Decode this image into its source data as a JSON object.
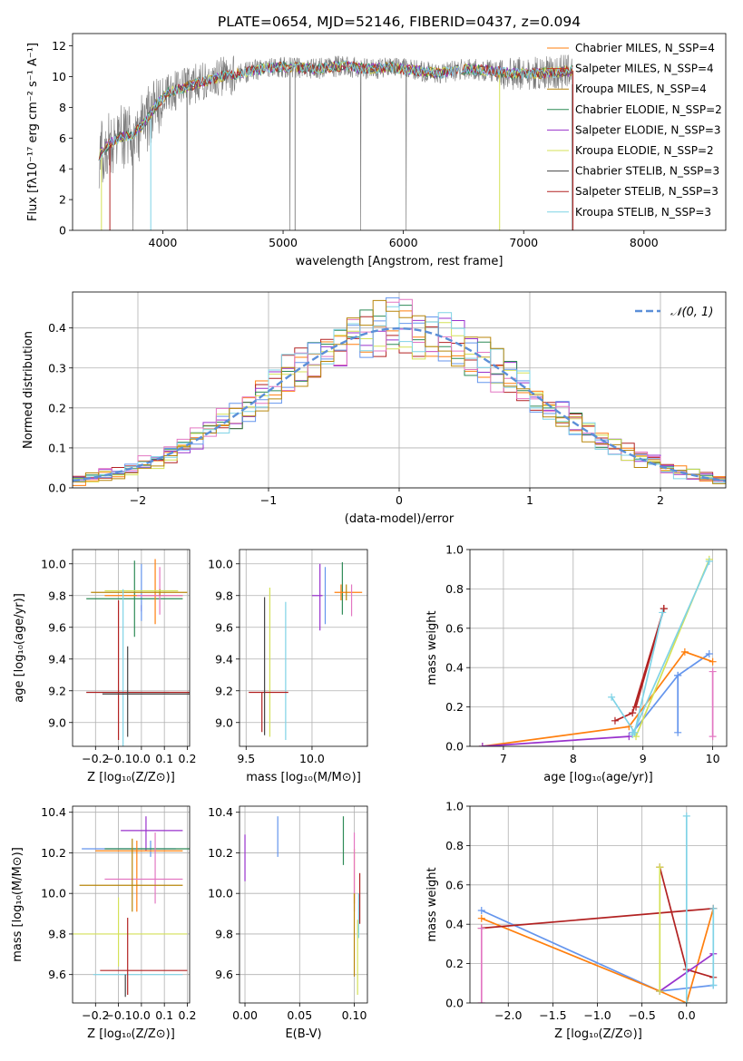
{
  "figure": {
    "title": "PLATE=0654, MJD=52146, FIBERID=0437, z=0.094"
  },
  "model_colors": [
    "#b8860b",
    "#2e8b57",
    "#9932cc",
    "#d4e157",
    "#555555",
    "#b22222",
    "#7fd3e6"
  ],
  "chart_data": [
    {
      "id": "spectrum",
      "type": "line",
      "xlabel": "wavelength [Angstrom, rest frame]",
      "ylabel": "Flux [fλ10⁻¹⁷ erg cm⁻² s⁻¹ A⁻¹]",
      "xlim": [
        3250,
        8680
      ],
      "ylim": [
        0,
        12.8
      ],
      "xticks": [
        4000,
        5000,
        6000,
        7000,
        8000
      ],
      "yticks": [
        0,
        2,
        4,
        6,
        8,
        10,
        12
      ],
      "grid": false,
      "legend_position": "right",
      "data_wavelength_range": [
        3470,
        7410
      ],
      "continuum": {
        "x": [
          3470,
          3550,
          3650,
          3750,
          3850,
          3950,
          4050,
          4150,
          4300,
          4500,
          4700,
          4900,
          5100,
          5300,
          5500,
          5700,
          5900,
          6100,
          6300,
          6500,
          6700,
          6900,
          7100,
          7300,
          7410
        ],
        "y": [
          4.9,
          5.6,
          6.1,
          6.2,
          7.0,
          8.2,
          9.0,
          9.2,
          9.6,
          10.0,
          10.3,
          10.6,
          10.6,
          10.5,
          10.7,
          10.5,
          10.6,
          10.4,
          10.2,
          10.5,
          10.4,
          10.2,
          10.2,
          10.3,
          10.4
        ]
      },
      "series": [
        {
          "name": "Chabrier MILES, N_SSP=4"
        },
        {
          "name": "Salpeter MILES, N_SSP=4"
        },
        {
          "name": "Kroupa MILES, N_SSP=4"
        },
        {
          "name": "Chabrier ELODIE, N_SSP=2"
        },
        {
          "name": "Salpeter ELODIE, N_SSP=3"
        },
        {
          "name": "Kroupa ELODIE, N_SSP=2"
        },
        {
          "name": "Chabrier STELIB, N_SSP=3"
        },
        {
          "name": "Salpeter STELIB, N_SSP=3"
        },
        {
          "name": "Kroupa STELIB, N_SSP=3"
        }
      ]
    },
    {
      "id": "residuals",
      "type": "area",
      "xlabel": "(data-model)/error",
      "ylabel": "Normed distribution",
      "xlim": [
        -2.5,
        2.5
      ],
      "ylim": [
        0,
        0.49
      ],
      "xticks": [
        -2,
        -1,
        0,
        1,
        2
      ],
      "yticks": [
        0.0,
        0.1,
        0.2,
        0.3,
        0.4
      ],
      "grid": true,
      "legend": "𝒩(0, 1)",
      "legend_position": "top-right",
      "bin_width": 0.1,
      "gaussian": {
        "mean": 0,
        "sigma": 1
      }
    },
    {
      "id": "age-vs-Z",
      "type": "scatter",
      "xlabel": "Z [log₁₀(Z/Z⊙)]",
      "ylabel": "age  [log₁₀(age/yr)]",
      "xlim": [
        -0.3,
        0.21
      ],
      "ylim": [
        8.85,
        10.09
      ],
      "xticks": [
        -0.2,
        -0.1,
        0.0,
        0.1,
        0.2
      ],
      "yticks": [
        9.0,
        9.2,
        9.4,
        9.6,
        9.8,
        10.0
      ],
      "grid": true,
      "points": [
        {
          "x": 0.0,
          "y": 9.72,
          "xerr": [
            0.0,
            0.0
          ],
          "yerr": [
            0.02,
            0.02
          ]
        },
        {
          "x": 0.0,
          "y": 9.82,
          "xerr": [
            0.0,
            0.0
          ],
          "yerr": [
            0.18,
            0.18
          ]
        },
        {
          "x": -0.03,
          "y": 9.78,
          "xerr": [
            0.21,
            0.21
          ],
          "yerr": [
            0.24,
            0.24
          ]
        },
        {
          "x": 0.06,
          "y": 9.8,
          "xerr": [
            0.22,
            0.12
          ],
          "yerr": [
            0.18,
            0.23
          ]
        },
        {
          "x": 0.08,
          "y": 9.8,
          "xerr": [
            0.1,
            0.1
          ],
          "yerr": [
            0.12,
            0.18
          ]
        },
        {
          "x": 0.08,
          "y": 9.82,
          "xerr": [
            0.3,
            0.12
          ],
          "yerr": [
            0.02,
            0.02
          ]
        },
        {
          "x": 0.0,
          "y": 9.83,
          "xerr": [
            0.16,
            0.16
          ],
          "yerr": [
            0.0,
            0.0
          ]
        },
        {
          "x": -0.08,
          "y": 9.19,
          "xerr": [
            0.16,
            0.2
          ],
          "yerr": [
            0.72,
            0.65
          ]
        },
        {
          "x": -0.1,
          "y": 9.19,
          "xerr": [
            0.14,
            0.31
          ],
          "yerr": [
            0.3,
            0.58
          ]
        },
        {
          "x": -0.06,
          "y": 9.18,
          "xerr": [
            0.11,
            0.27
          ],
          "yerr": [
            0.27,
            0.3
          ]
        }
      ]
    },
    {
      "id": "age-vs-mass",
      "type": "scatter",
      "xlabel": "mass [log₁₀(M/M⊙)]",
      "xlim": [
        9.45,
        10.42
      ],
      "ylim": [
        8.85,
        10.09
      ],
      "xticks": [
        9.5,
        10.0
      ],
      "yticks": [
        9.0,
        9.2,
        9.4,
        9.6,
        9.8,
        10.0
      ],
      "grid": true,
      "points": [
        {
          "x": 10.06,
          "y": 9.8,
          "xerr": [
            0.06,
            0.02
          ],
          "yerr": [
            0.22,
            0.2
          ]
        },
        {
          "x": 10.1,
          "y": 9.8,
          "xerr": [
            0.0,
            0.0
          ],
          "yerr": [
            0.18,
            0.18
          ]
        },
        {
          "x": 10.23,
          "y": 9.83,
          "xerr": [
            0.0,
            0.0
          ],
          "yerr": [
            0.15,
            0.18
          ]
        },
        {
          "x": 10.22,
          "y": 9.82,
          "xerr": [
            0.05,
            0.16
          ],
          "yerr": [
            0.05,
            0.05
          ]
        },
        {
          "x": 10.3,
          "y": 9.82,
          "xerr": [
            0.0,
            0.0
          ],
          "yerr": [
            0.15,
            0.05
          ]
        },
        {
          "x": 10.26,
          "y": 9.82,
          "xerr": [
            0.0,
            0.0
          ],
          "yerr": [
            0.05,
            0.05
          ]
        },
        {
          "x": 9.68,
          "y": 9.19,
          "xerr": [
            0.0,
            0.0
          ],
          "yerr": [
            0.28,
            0.66
          ]
        },
        {
          "x": 9.8,
          "y": 9.19,
          "xerr": [
            0.0,
            0.0
          ],
          "yerr": [
            0.3,
            0.57
          ]
        },
        {
          "x": 9.62,
          "y": 9.19,
          "xerr": [
            0.1,
            0.2
          ],
          "yerr": [
            0.25,
            0.0
          ]
        },
        {
          "x": 9.64,
          "y": 9.19,
          "xerr": [
            0.0,
            0.0
          ],
          "yerr": [
            0.27,
            0.6
          ]
        }
      ]
    },
    {
      "id": "massweight-vs-age",
      "type": "line",
      "xlabel": "age  [log₁₀(age/yr)]",
      "ylabel": "mass weight",
      "xlim": [
        6.52,
        10.2
      ],
      "ylim": [
        0,
        1.0
      ],
      "xticks": [
        7,
        8,
        9,
        10
      ],
      "yticks": [
        0.0,
        0.2,
        0.4,
        0.6,
        0.8,
        1.0
      ],
      "grid": true,
      "series": [
        {
          "x": [
            8.85,
            9.5,
            9.95
          ],
          "y": [
            0.07,
            0.36,
            0.47
          ]
        },
        {
          "x": [
            6.7,
            8.8,
            9.6,
            10.0
          ],
          "y": [
            0.0,
            0.1,
            0.48,
            0.43
          ]
        },
        {
          "x": [
            9.3,
            8.9
          ],
          "y": [
            0.7,
            0.2
          ]
        },
        {
          "x": [
            8.6,
            8.85,
            9.3
          ],
          "y": [
            0.13,
            0.17,
            0.7
          ]
        },
        {
          "x": [
            6.7,
            8.8
          ],
          "y": [
            0.0,
            0.05
          ]
        },
        {
          "x": [
            8.9,
            9.95
          ],
          "y": [
            0.05,
            0.95
          ]
        },
        {
          "x": [
            8.85,
            9.95
          ],
          "y": [
            0.06,
            0.94
          ]
        },
        {
          "x": [
            8.55,
            8.88,
            9.28
          ],
          "y": [
            0.25,
            0.07,
            0.68
          ]
        },
        {
          "x": [
            10.0,
            10.0
          ],
          "y": [
            0.05,
            0.38
          ]
        },
        {
          "x": [
            9.5,
            9.5
          ],
          "y": [
            0.07,
            0.36
          ]
        }
      ]
    },
    {
      "id": "mass-vs-Z",
      "type": "scatter",
      "xlabel": "Z [log₁₀(Z/Z⊙)]",
      "ylabel": "mass [log₁₀(M/M⊙)]",
      "xlim": [
        -0.3,
        0.21
      ],
      "ylim": [
        9.46,
        10.43
      ],
      "xticks": [
        -0.2,
        -0.1,
        0.0,
        0.1,
        0.2
      ],
      "yticks": [
        9.6,
        9.8,
        10.0,
        10.2,
        10.4
      ],
      "grid": true,
      "points": [
        {
          "x": 0.02,
          "y": 10.31,
          "xerr": [
            0.11,
            0.16
          ],
          "yerr": [
            0.1,
            0.07
          ]
        },
        {
          "x": 0.04,
          "y": 10.22,
          "xerr": [
            0.3,
            0.11
          ],
          "yerr": [
            0.04,
            0.04
          ]
        },
        {
          "x": 0.0,
          "y": 10.22,
          "xerr": [
            0.16,
            0.21
          ],
          "yerr": [
            0.0,
            0.0
          ]
        },
        {
          "x": -0.02,
          "y": 10.21,
          "xerr": [
            0.18,
            0.2
          ],
          "yerr": [
            0.3,
            0.05
          ]
        },
        {
          "x": 0.06,
          "y": 10.07,
          "xerr": [
            0.22,
            0.12
          ],
          "yerr": [
            0.12,
            0.23
          ]
        },
        {
          "x": -0.04,
          "y": 10.04,
          "xerr": [
            0.23,
            0.22
          ],
          "yerr": [
            0.13,
            0.23
          ]
        },
        {
          "x": -0.1,
          "y": 9.8,
          "xerr": [
            0.2,
            0.3
          ],
          "yerr": [
            0.16,
            0.18
          ]
        },
        {
          "x": -0.08,
          "y": 9.6,
          "xerr": [
            0.13,
            0.26
          ],
          "yerr": [
            0.0,
            0.0
          ]
        },
        {
          "x": -0.06,
          "y": 9.62,
          "xerr": [
            0.12,
            0.26
          ],
          "yerr": [
            0.12,
            0.26
          ]
        },
        {
          "x": -0.07,
          "y": 9.6,
          "xerr": [
            0.0,
            0.0
          ],
          "yerr": [
            0.11,
            0.0
          ]
        }
      ]
    },
    {
      "id": "mass-vs-EBV",
      "type": "scatter",
      "xlabel": "E(B-V)",
      "xlim": [
        -0.005,
        0.112
      ],
      "ylim": [
        9.46,
        10.43
      ],
      "xticks": [
        0.0,
        0.05,
        0.1
      ],
      "yticks": [
        9.6,
        9.8,
        10.0,
        10.2,
        10.4
      ],
      "grid": true,
      "points": [
        {
          "x": 0.0,
          "y": 10.17,
          "xerr": [
            0.0,
            0.0
          ],
          "yerr": [
            0.11,
            0.12
          ]
        },
        {
          "x": 0.03,
          "y": 10.28,
          "xerr": [
            0.0,
            0.0
          ],
          "yerr": [
            0.1,
            0.1
          ]
        },
        {
          "x": 0.09,
          "y": 10.22,
          "xerr": [
            0.0,
            0.0
          ],
          "yerr": [
            0.08,
            0.16
          ]
        },
        {
          "x": 0.1,
          "y": 10.16,
          "xerr": [
            0.0,
            0.0
          ],
          "yerr": [
            0.21,
            0.06
          ]
        },
        {
          "x": 0.1,
          "y": 10.11,
          "xerr": [
            0.0,
            0.0
          ],
          "yerr": [
            0.2,
            0.19
          ]
        },
        {
          "x": 0.1,
          "y": 9.78,
          "xerr": [
            0.0,
            0.0
          ],
          "yerr": [
            0.19,
            0.22
          ]
        },
        {
          "x": 0.103,
          "y": 9.7,
          "xerr": [
            0.0,
            0.0
          ],
          "yerr": [
            0.2,
            0.17
          ]
        },
        {
          "x": 0.104,
          "y": 9.92,
          "xerr": [
            0.0,
            0.0
          ],
          "yerr": [
            0.14,
            0.08
          ]
        },
        {
          "x": 0.105,
          "y": 9.95,
          "xerr": [
            0.0,
            0.0
          ],
          "yerr": [
            0.1,
            0.15
          ]
        }
      ]
    },
    {
      "id": "massweight-vs-Z",
      "type": "line",
      "xlabel": "Z [log₁₀(Z/Z⊙)]",
      "ylabel": "mass weight",
      "xlim": [
        -2.43,
        0.45
      ],
      "ylim": [
        0,
        1.0
      ],
      "xticks": [
        -2.0,
        -1.5,
        -1.0,
        -0.5,
        0.0
      ],
      "yticks": [
        0.0,
        0.2,
        0.4,
        0.6,
        0.8,
        1.0
      ],
      "grid": true,
      "series": [
        {
          "x": [
            -2.3,
            -0.3,
            0.3
          ],
          "y": [
            0.47,
            0.06,
            0.09
          ]
        },
        {
          "x": [
            -2.3,
            -0.3,
            0.0,
            0.3
          ],
          "y": [
            0.43,
            0.06,
            0.0,
            0.48
          ]
        },
        {
          "x": [
            -2.3,
            0.3
          ],
          "y": [
            0.38,
            0.48
          ]
        },
        {
          "x": [
            -0.3,
            0.0,
            0.3
          ],
          "y": [
            0.69,
            0.17,
            0.13
          ]
        },
        {
          "x": [
            -0.3,
            0.3
          ],
          "y": [
            0.06,
            0.25
          ]
        },
        {
          "x": [
            -0.3,
            -0.3
          ],
          "y": [
            0.06,
            0.69
          ]
        },
        {
          "x": [
            0.0,
            0.0
          ],
          "y": [
            0.0,
            0.95
          ]
        },
        {
          "x": [
            0.3,
            0.3
          ],
          "y": [
            0.09,
            0.48
          ]
        },
        {
          "x": [
            -2.3,
            -2.3
          ],
          "y": [
            0.0,
            0.38
          ]
        }
      ]
    }
  ]
}
